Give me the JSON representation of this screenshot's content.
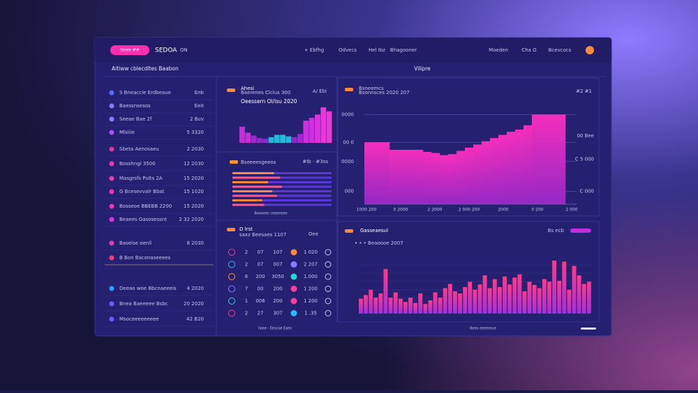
{
  "header": {
    "pill": "Smm ##",
    "brand": "SEDOA",
    "brand_tag": "ON",
    "nav": [
      "+ Ebfhg",
      "Odvecs",
      "Hel Ibz",
      "Bhagooner"
    ],
    "right": [
      "Moeden",
      "Cha O",
      "Bcevcocs"
    ]
  },
  "sidebar": {
    "title": "Aitiww cblecdltes Baabon",
    "rows": [
      {
        "label": "S Bneaccie Erdbeaue",
        "value": "Enb",
        "color": "#5b6bff"
      },
      {
        "label": "Baessnsesos",
        "value": "Eeit",
        "color": "#8a7bff"
      },
      {
        "label": "Seeae Bae 2f",
        "value": "2 Buv",
        "color": "#8a7bff"
      },
      {
        "label": "Mlsiiie",
        "value": "5 3320",
        "color": "#b04cff"
      },
      {
        "label": "Sbeta Aenosaeu",
        "value": "2 2030",
        "color": "#e0369c"
      },
      {
        "label": "Bosshngi 3500",
        "value": "12 2030",
        "color": "#e93ab0"
      },
      {
        "label": "Masgrsfs Pults  2A",
        "value": "15 2020",
        "color": "#e93ab0"
      },
      {
        "label": "G Bcesevvalr Bbat",
        "value": "15 1020",
        "color": "#e93ab0"
      },
      {
        "label": "Bosseoe BBEBB 2200",
        "value": "15 2020",
        "color": "#e93ab0"
      },
      {
        "label": "Beaees Gasosessnt",
        "value": "2 32 2020",
        "color": "#d836e0"
      },
      {
        "label": "Baseise oenil",
        "value": "8 2030",
        "color": "#e93ab0"
      },
      {
        "label": "B Bon Baconaseeees",
        "color": "#ff3a7a"
      },
      {
        "label": "Deeao woe Bbcnaeeeis",
        "value": "4 2020",
        "color": "#2aa8ff"
      },
      {
        "label": "Bnea Baeeeee Bsbc",
        "value": "20 2020",
        "color": "#6a5bff"
      },
      {
        "label": "Msoceeeeeeeee",
        "value": "42 B20",
        "color": "#6a5bff"
      }
    ]
  },
  "spark": {
    "title": "Ahesi",
    "subtitle": "Baerenes Clclus 300",
    "badge": "A/ Ebi",
    "caption": "Oeessern Ol/isu 2020",
    "ylim": [
      0,
      100
    ],
    "bars": [
      {
        "value": 40,
        "color": "#c22fd8"
      },
      {
        "value": 25,
        "color": "#c22fd8"
      },
      {
        "value": 18,
        "color": "#a02ad0"
      },
      {
        "value": 12,
        "color": "#8a2ac8"
      },
      {
        "value": 10,
        "color": "#8a2ac8"
      },
      {
        "value": 14,
        "color": "#22b8d8"
      },
      {
        "value": 20,
        "color": "#22b8d8"
      },
      {
        "value": 20,
        "color": "#22b8d8"
      },
      {
        "value": 16,
        "color": "#22b8d8"
      },
      {
        "value": 14,
        "color": "#8a2ac8"
      },
      {
        "value": 22,
        "color": "#a02ad0"
      },
      {
        "value": 55,
        "color": "#d02ee0"
      },
      {
        "value": 62,
        "color": "#d02ee0"
      },
      {
        "value": 70,
        "color": "#e030e0"
      },
      {
        "value": 88,
        "color": "#e838d8"
      },
      {
        "value": 78,
        "color": "#e838d8"
      }
    ]
  },
  "hbars": {
    "title": "Bseeeesgeeos",
    "badge": "#Ib  ·  #3ss",
    "caption": "Boaeees ceeeneee",
    "xlim": [
      0,
      100
    ],
    "rows": [
      {
        "highlight": 42,
        "total": 100
      },
      {
        "highlight": 48,
        "total": 100
      },
      {
        "highlight": 36,
        "total": 100
      },
      {
        "highlight": 50,
        "total": 100
      },
      {
        "highlight": 40,
        "total": 100
      },
      {
        "highlight": 45,
        "total": 100
      },
      {
        "highlight": 30,
        "total": 100
      },
      {
        "highlight": 32,
        "total": 100
      }
    ]
  },
  "table": {
    "title": "D lrst",
    "subtitle": "saxz Beesaes 1107",
    "badge": "Oee",
    "caption": "Ilaee  ·  Eescoe  Eaes",
    "rows": [
      [
        "2",
        "07",
        "107",
        "1 020"
      ],
      [
        "2",
        "07",
        "007",
        "2 207"
      ],
      [
        "6",
        "200",
        "3050",
        "1.000"
      ],
      [
        "7",
        "00",
        "200",
        "1 200"
      ],
      [
        "1",
        "006",
        "200",
        "1 200"
      ],
      [
        "2",
        "27",
        "307",
        "1 .35"
      ]
    ]
  },
  "area": {
    "heading": "Vilipre",
    "title": "Bsneemcs",
    "subtitle": "Bsonnsces 2020 207",
    "badge": "#2  #1",
    "ylim": [
      0,
      100
    ],
    "yticks": [
      {
        "value": 84,
        "label": "0000"
      },
      {
        "value": 58,
        "label": "00 0"
      },
      {
        "value": 40,
        "label": "0000"
      },
      {
        "value": 12,
        "label": "000"
      }
    ],
    "y2ticks": [
      {
        "value": 64,
        "label": "00 Bee"
      },
      {
        "value": 42,
        "label": "C 5 000"
      },
      {
        "value": 12,
        "label": "C 000"
      }
    ],
    "xlabels": [
      "1000 200",
      "0 2000",
      "2 2000",
      "2 000 200",
      "2000",
      "0 200",
      "2 000"
    ],
    "values": [
      58,
      58,
      58,
      51,
      51,
      51,
      51,
      49,
      48,
      46,
      47,
      50,
      53,
      56,
      59,
      62,
      65,
      68,
      70,
      74,
      84,
      84,
      84,
      84
    ]
  },
  "hist": {
    "title": "Gasseaesul",
    "subtitle": "• • • Beaoooe 2007",
    "badge": "Bs ecb",
    "caption": "Beeo eeeeesse",
    "ylim": [
      0,
      100
    ],
    "values": [
      28,
      35,
      45,
      30,
      38,
      84,
      30,
      40,
      28,
      22,
      30,
      20,
      38,
      18,
      25,
      40,
      30,
      48,
      56,
      42,
      38,
      50,
      60,
      45,
      55,
      72,
      48,
      65,
      50,
      70,
      55,
      68,
      74,
      42,
      60,
      54,
      48,
      65,
      60,
      100,
      62,
      98,
      45,
      90,
      72,
      56,
      60
    ]
  }
}
